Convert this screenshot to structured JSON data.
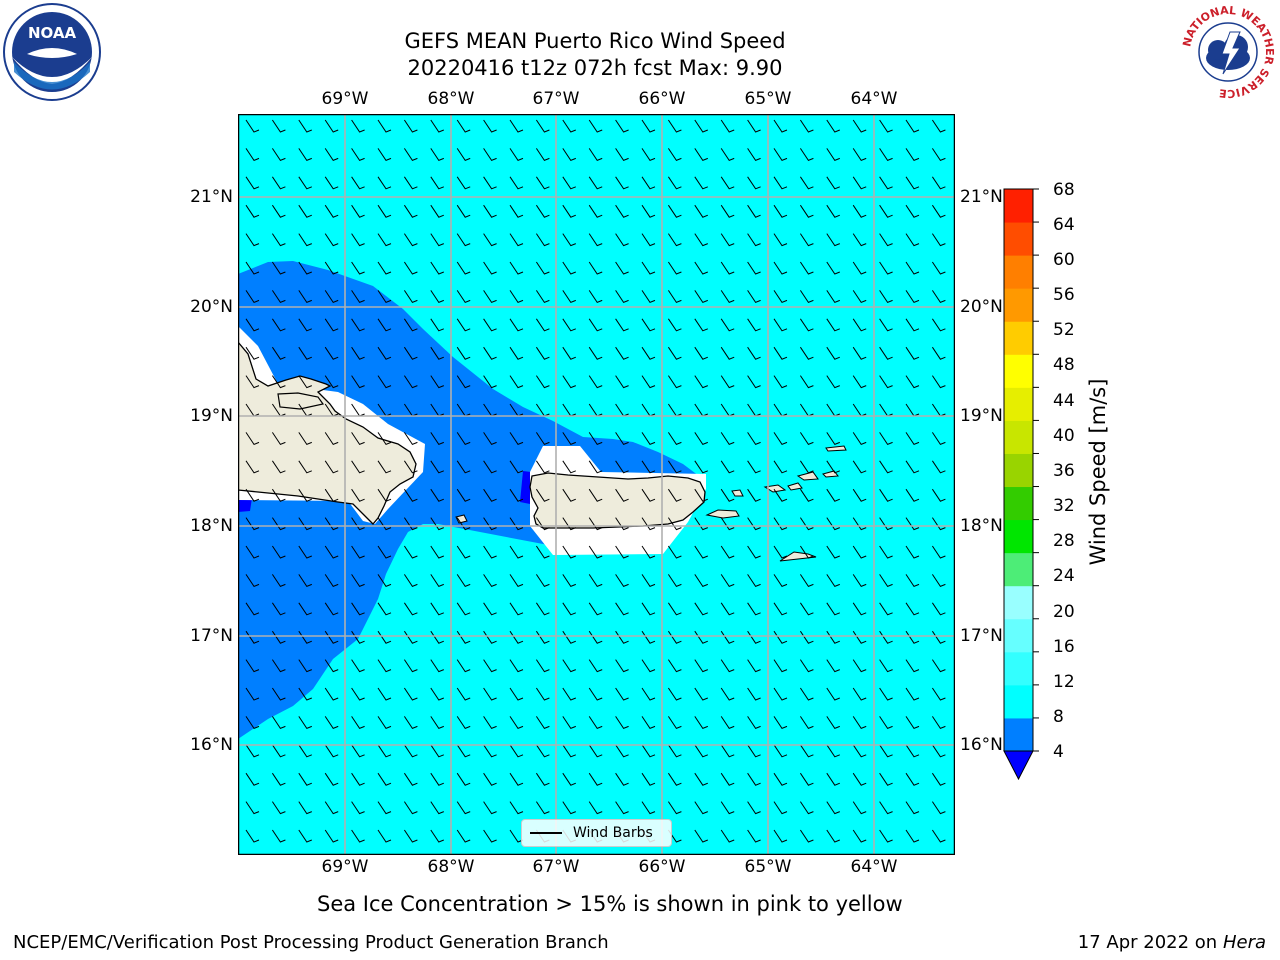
{
  "title": {
    "line1": "GEFS MEAN Puerto Rico Wind Speed",
    "line2": "20220416 t12z 072h fcst   Max: 9.90"
  },
  "map": {
    "lon_ticks": [
      "69°W",
      "68°W",
      "67°W",
      "66°W",
      "65°W",
      "64°W"
    ],
    "lat_ticks": [
      "21°N",
      "20°N",
      "19°N",
      "18°N",
      "17°N",
      "16°N"
    ],
    "ocean_color": "#00ffff",
    "low_wind_color": "#007fff",
    "land_color": "#eeecdc",
    "legend_label": "Wind Barbs"
  },
  "colorbar": {
    "label": "Wind Speed [m/s]",
    "levels": [
      "4",
      "8",
      "12",
      "16",
      "20",
      "24",
      "28",
      "32",
      "36",
      "40",
      "44",
      "48",
      "52",
      "56",
      "60",
      "64",
      "68"
    ],
    "colors": [
      "#007fff",
      "#00ffff",
      "#33ffff",
      "#66ffff",
      "#99ffff",
      "#4ded77",
      "#00e600",
      "#33cc00",
      "#99d400",
      "#c8e600",
      "#e6ee00",
      "#ffff00",
      "#ffcc00",
      "#ff9900",
      "#ff7f00",
      "#ff4d00",
      "#ff2000"
    ],
    "under_color": "#0000ff"
  },
  "logos": {
    "noaa_text": "NOAA",
    "nws_ring_text": "NATIONAL WEATHER SERVICE"
  },
  "footer": {
    "note": "Sea Ice Concentration > 15% is shown in pink to yellow",
    "branch": "NCEP/EMC/Verification Post Processing Product Generation Branch",
    "date": "17 Apr 2022 on",
    "machine": "Hera"
  }
}
